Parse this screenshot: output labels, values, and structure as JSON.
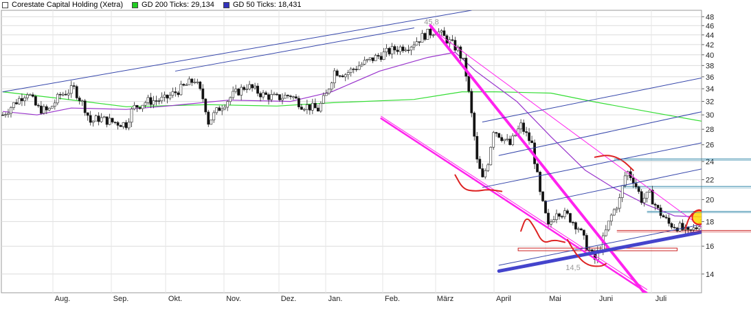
{
  "legend": [
    {
      "label": "Corestate Capital Holding (Xetra)",
      "color": "#ffffff"
    },
    {
      "label": "GD 200 Ticks: 29,134",
      "color": "#22cc22"
    },
    {
      "label": "GD 50 Ticks: 18,431",
      "color": "#3333bb"
    }
  ],
  "chart_data": {
    "type": "candlestick",
    "title": "Corestate Capital Holding (Xetra)",
    "x_labels": [
      "Aug.",
      "Sep.",
      "Okt.",
      "Nov.",
      "Dez.",
      "Jan.",
      "Feb.",
      "März",
      "April",
      "Mai",
      "Juni",
      "Juli"
    ],
    "y_ticks": [
      14,
      16,
      18,
      20,
      22,
      24,
      26,
      28,
      30,
      32,
      34,
      36,
      38,
      40,
      42,
      44,
      46,
      48
    ],
    "y_scale": "log",
    "ylim": [
      12.8,
      49.5
    ],
    "annotations": [
      {
        "text": "45,8",
        "value": 45.8,
        "note": "high (Feb.)"
      },
      {
        "text": "14,5",
        "value": 14.5,
        "note": "low (Mai)"
      }
    ],
    "price_path": [
      {
        "d": 0,
        "v": 30.0
      },
      {
        "d": 10,
        "v": 32.0
      },
      {
        "d": 18,
        "v": 33.5
      },
      {
        "d": 25,
        "v": 31.0
      },
      {
        "d": 33,
        "v": 30.5
      },
      {
        "d": 42,
        "v": 33.0
      },
      {
        "d": 52,
        "v": 34.0
      },
      {
        "d": 60,
        "v": 31.0
      },
      {
        "d": 64,
        "v": 29.0
      },
      {
        "d": 70,
        "v": 29.5
      },
      {
        "d": 80,
        "v": 29.0
      },
      {
        "d": 90,
        "v": 28.7
      },
      {
        "d": 95,
        "v": 31.0
      },
      {
        "d": 105,
        "v": 32.0
      },
      {
        "d": 118,
        "v": 32.3
      },
      {
        "d": 130,
        "v": 34.0
      },
      {
        "d": 140,
        "v": 35.5
      },
      {
        "d": 147,
        "v": 32.0
      },
      {
        "d": 150,
        "v": 29.0
      },
      {
        "d": 158,
        "v": 31.0
      },
      {
        "d": 168,
        "v": 33.0
      },
      {
        "d": 178,
        "v": 34.5
      },
      {
        "d": 190,
        "v": 33.0
      },
      {
        "d": 200,
        "v": 32.5
      },
      {
        "d": 210,
        "v": 33.0
      },
      {
        "d": 218,
        "v": 31.5
      },
      {
        "d": 230,
        "v": 30.8
      },
      {
        "d": 236,
        "v": 33.0
      },
      {
        "d": 242,
        "v": 37.0
      },
      {
        "d": 250,
        "v": 36.5
      },
      {
        "d": 260,
        "v": 38.0
      },
      {
        "d": 272,
        "v": 39.5
      },
      {
        "d": 285,
        "v": 41.0
      },
      {
        "d": 298,
        "v": 42.0
      },
      {
        "d": 308,
        "v": 44.0
      },
      {
        "d": 316,
        "v": 45.0
      },
      {
        "d": 324,
        "v": 43.0
      },
      {
        "d": 332,
        "v": 41.0
      },
      {
        "d": 337,
        "v": 38.0
      },
      {
        "d": 342,
        "v": 30.0
      },
      {
        "d": 346,
        "v": 24.0
      },
      {
        "d": 350,
        "v": 22.0
      },
      {
        "d": 354,
        "v": 24.0
      },
      {
        "d": 358,
        "v": 28.0
      },
      {
        "d": 364,
        "v": 27.0
      },
      {
        "d": 370,
        "v": 26.0
      },
      {
        "d": 378,
        "v": 28.5
      },
      {
        "d": 386,
        "v": 26.0
      },
      {
        "d": 392,
        "v": 20.5
      },
      {
        "d": 398,
        "v": 17.5
      },
      {
        "d": 404,
        "v": 19.0
      },
      {
        "d": 412,
        "v": 18.5
      },
      {
        "d": 420,
        "v": 17.5
      },
      {
        "d": 426,
        "v": 16.0
      },
      {
        "d": 432,
        "v": 15.0
      },
      {
        "d": 438,
        "v": 16.5
      },
      {
        "d": 444,
        "v": 18.5
      },
      {
        "d": 450,
        "v": 20.0
      },
      {
        "d": 455,
        "v": 23.0
      },
      {
        "d": 460,
        "v": 22.0
      },
      {
        "d": 466,
        "v": 20.0
      },
      {
        "d": 472,
        "v": 20.5
      },
      {
        "d": 478,
        "v": 19.0
      },
      {
        "d": 486,
        "v": 17.8
      },
      {
        "d": 494,
        "v": 17.5
      },
      {
        "d": 500,
        "v": 17.0
      },
      {
        "d": 506,
        "v": 17.5
      },
      {
        "d": 510,
        "v": 18.3
      }
    ],
    "gd200_path": [
      {
        "d": 0,
        "v": 33.5
      },
      {
        "d": 40,
        "v": 32.5
      },
      {
        "d": 90,
        "v": 31.2
      },
      {
        "d": 150,
        "v": 31.5
      },
      {
        "d": 200,
        "v": 31.3
      },
      {
        "d": 240,
        "v": 31.8
      },
      {
        "d": 300,
        "v": 32.3
      },
      {
        "d": 335,
        "v": 33.5
      },
      {
        "d": 360,
        "v": 33.5
      },
      {
        "d": 400,
        "v": 33.3
      },
      {
        "d": 430,
        "v": 32.0
      },
      {
        "d": 470,
        "v": 30.5
      },
      {
        "d": 510,
        "v": 29.1
      }
    ],
    "gd50_path": [
      {
        "d": 0,
        "v": 30.5
      },
      {
        "d": 25,
        "v": 30.0
      },
      {
        "d": 50,
        "v": 31.0
      },
      {
        "d": 90,
        "v": 30.8
      },
      {
        "d": 120,
        "v": 31.3
      },
      {
        "d": 165,
        "v": 32.2
      },
      {
        "d": 210,
        "v": 32.0
      },
      {
        "d": 240,
        "v": 33.5
      },
      {
        "d": 275,
        "v": 37.0
      },
      {
        "d": 310,
        "v": 39.5
      },
      {
        "d": 330,
        "v": 40.5
      },
      {
        "d": 345,
        "v": 37.0
      },
      {
        "d": 375,
        "v": 32.0
      },
      {
        "d": 400,
        "v": 27.0
      },
      {
        "d": 425,
        "v": 23.0
      },
      {
        "d": 445,
        "v": 21.2
      },
      {
        "d": 470,
        "v": 19.5
      },
      {
        "d": 490,
        "v": 18.5
      },
      {
        "d": 510,
        "v": 18.4
      }
    ],
    "trend_lines": [
      {
        "color": "#ff22ee",
        "width": 4,
        "from": {
          "d": 312,
          "v": 46.0
        },
        "to": {
          "d": 468,
          "v": 12.8
        }
      },
      {
        "color": "#ff22ee",
        "width": 2.5,
        "from": {
          "d": 276,
          "v": 29.5
        },
        "to": {
          "d": 470,
          "v": 12.8
        }
      },
      {
        "color": "#ff22ee",
        "width": 1,
        "from": {
          "d": 276,
          "v": 29.8
        },
        "to": {
          "d": 470,
          "v": 13.0
        }
      },
      {
        "color": "#ff22ee",
        "width": 1,
        "from": {
          "d": 312,
          "v": 45.5
        },
        "to": {
          "d": 545,
          "v": 14.8
        }
      },
      {
        "color": "#4444cc",
        "width": 5,
        "from": {
          "d": 362,
          "v": 14.2
        },
        "to": {
          "d": 545,
          "v": 17.9
        }
      },
      {
        "color": "#3344aa",
        "width": 1,
        "from": {
          "d": 0,
          "v": 33.5
        },
        "to": {
          "d": 342,
          "v": 49.5
        }
      },
      {
        "color": "#3344aa",
        "width": 1,
        "from": {
          "d": 126,
          "v": 37.0
        },
        "to": {
          "d": 300,
          "v": 45.5
        }
      },
      {
        "color": "#3344aa",
        "width": 1,
        "from": {
          "d": 350,
          "v": 21.2
        },
        "to": {
          "d": 545,
          "v": 27.5
        }
      },
      {
        "color": "#3344aa",
        "width": 1,
        "from": {
          "d": 350,
          "v": 29.0
        },
        "to": {
          "d": 545,
          "v": 37.5
        }
      },
      {
        "color": "#3344aa",
        "width": 1,
        "from": {
          "d": 362,
          "v": 24.7
        },
        "to": {
          "d": 545,
          "v": 32.0
        }
      },
      {
        "color": "#3344aa",
        "width": 1,
        "from": {
          "d": 396,
          "v": 19.8
        },
        "to": {
          "d": 545,
          "v": 24.3
        }
      },
      {
        "color": "#3344aa",
        "width": 1,
        "from": {
          "d": 362,
          "v": 14.6
        },
        "to": {
          "d": 545,
          "v": 18.6
        }
      }
    ],
    "horizontal_lines": [
      {
        "color": "#3388aa",
        "value": 24.3,
        "from_d": 446
      },
      {
        "color": "#3388aa",
        "value": 21.3,
        "from_d": 452
      },
      {
        "color": "#3388aa",
        "value": 18.9,
        "from_d": 470
      },
      {
        "color": "#cc2222",
        "value": 17.25,
        "from_d": 448
      }
    ],
    "support_boxes": [
      {
        "color": "#cc2222",
        "from_d": 376,
        "to_d": 492,
        "v_top": 15.85,
        "v_bottom": 15.65
      }
    ],
    "arcs": [
      {
        "color": "#dd2222",
        "points": [
          {
            "d": 330,
            "v": 22.5
          },
          {
            "d": 336,
            "v": 21.0
          },
          {
            "d": 345,
            "v": 20.8
          },
          {
            "d": 354,
            "v": 21.0
          },
          {
            "d": 364,
            "v": 20.8
          }
        ]
      },
      {
        "color": "#dd2222",
        "points": [
          {
            "d": 378,
            "v": 17.2
          },
          {
            "d": 382,
            "v": 18.5
          },
          {
            "d": 388,
            "v": 17.5
          },
          {
            "d": 394,
            "v": 16.2
          },
          {
            "d": 402,
            "v": 16.5
          },
          {
            "d": 410,
            "v": 16.3
          }
        ]
      },
      {
        "color": "#dd2222",
        "points": [
          {
            "d": 412,
            "v": 16.5
          },
          {
            "d": 418,
            "v": 15.4
          },
          {
            "d": 426,
            "v": 14.6
          },
          {
            "d": 436,
            "v": 14.5
          },
          {
            "d": 440,
            "v": 14.7
          }
        ]
      },
      {
        "color": "#dd2222",
        "points": [
          {
            "d": 432,
            "v": 24.5
          },
          {
            "d": 442,
            "v": 24.8
          },
          {
            "d": 452,
            "v": 24.2
          },
          {
            "d": 460,
            "v": 23.0
          }
        ]
      },
      {
        "color": "#dd2222",
        "points": [
          {
            "d": 498,
            "v": 17.4
          },
          {
            "d": 501,
            "v": 18.5
          },
          {
            "d": 508,
            "v": 19.2
          },
          {
            "d": 514,
            "v": 18.5
          },
          {
            "d": 516,
            "v": 17.6
          }
        ]
      }
    ],
    "highlight_circle": {
      "d": 508,
      "v": 18.35,
      "color": "#ffd700",
      "border": "#ee2222"
    }
  }
}
